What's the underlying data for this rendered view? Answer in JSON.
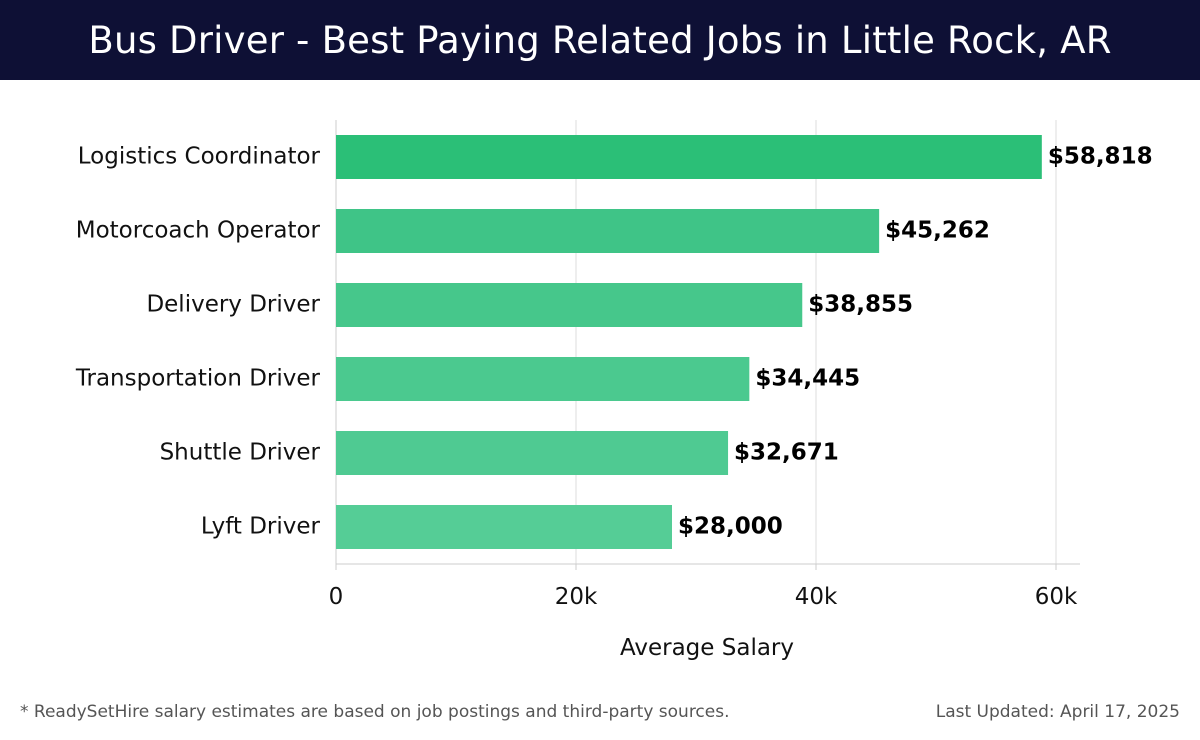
{
  "header": {
    "title": "Bus Driver - Best Paying Related Jobs in Little Rock, AR"
  },
  "chart_data": {
    "type": "bar",
    "orientation": "horizontal",
    "categories": [
      "Logistics Coordinator",
      "Motorcoach Operator",
      "Delivery Driver",
      "Transportation Driver",
      "Shuttle Driver",
      "Lyft Driver"
    ],
    "values": [
      58818,
      45262,
      38855,
      34445,
      32671,
      28000
    ],
    "data_labels": [
      "$58,818",
      "$45,262",
      "$38,855",
      "$34,445",
      "$32,671",
      "$28,000"
    ],
    "xlabel": "Average Salary",
    "ylabel": "",
    "xlim": [
      0,
      60000
    ],
    "x_ticks": [
      0,
      20000,
      40000,
      60000
    ],
    "x_tick_labels": [
      "0",
      "20k",
      "40k",
      "60k"
    ],
    "grid": true,
    "colors": [
      "#2bbf77",
      "#3fc487",
      "#46c78b",
      "#4bc98f",
      "#4fca92",
      "#55cd96"
    ]
  },
  "footer": {
    "note": "* ReadySetHire salary estimates are based on job postings and third-party sources.",
    "updated": "Last Updated: April 17, 2025"
  }
}
